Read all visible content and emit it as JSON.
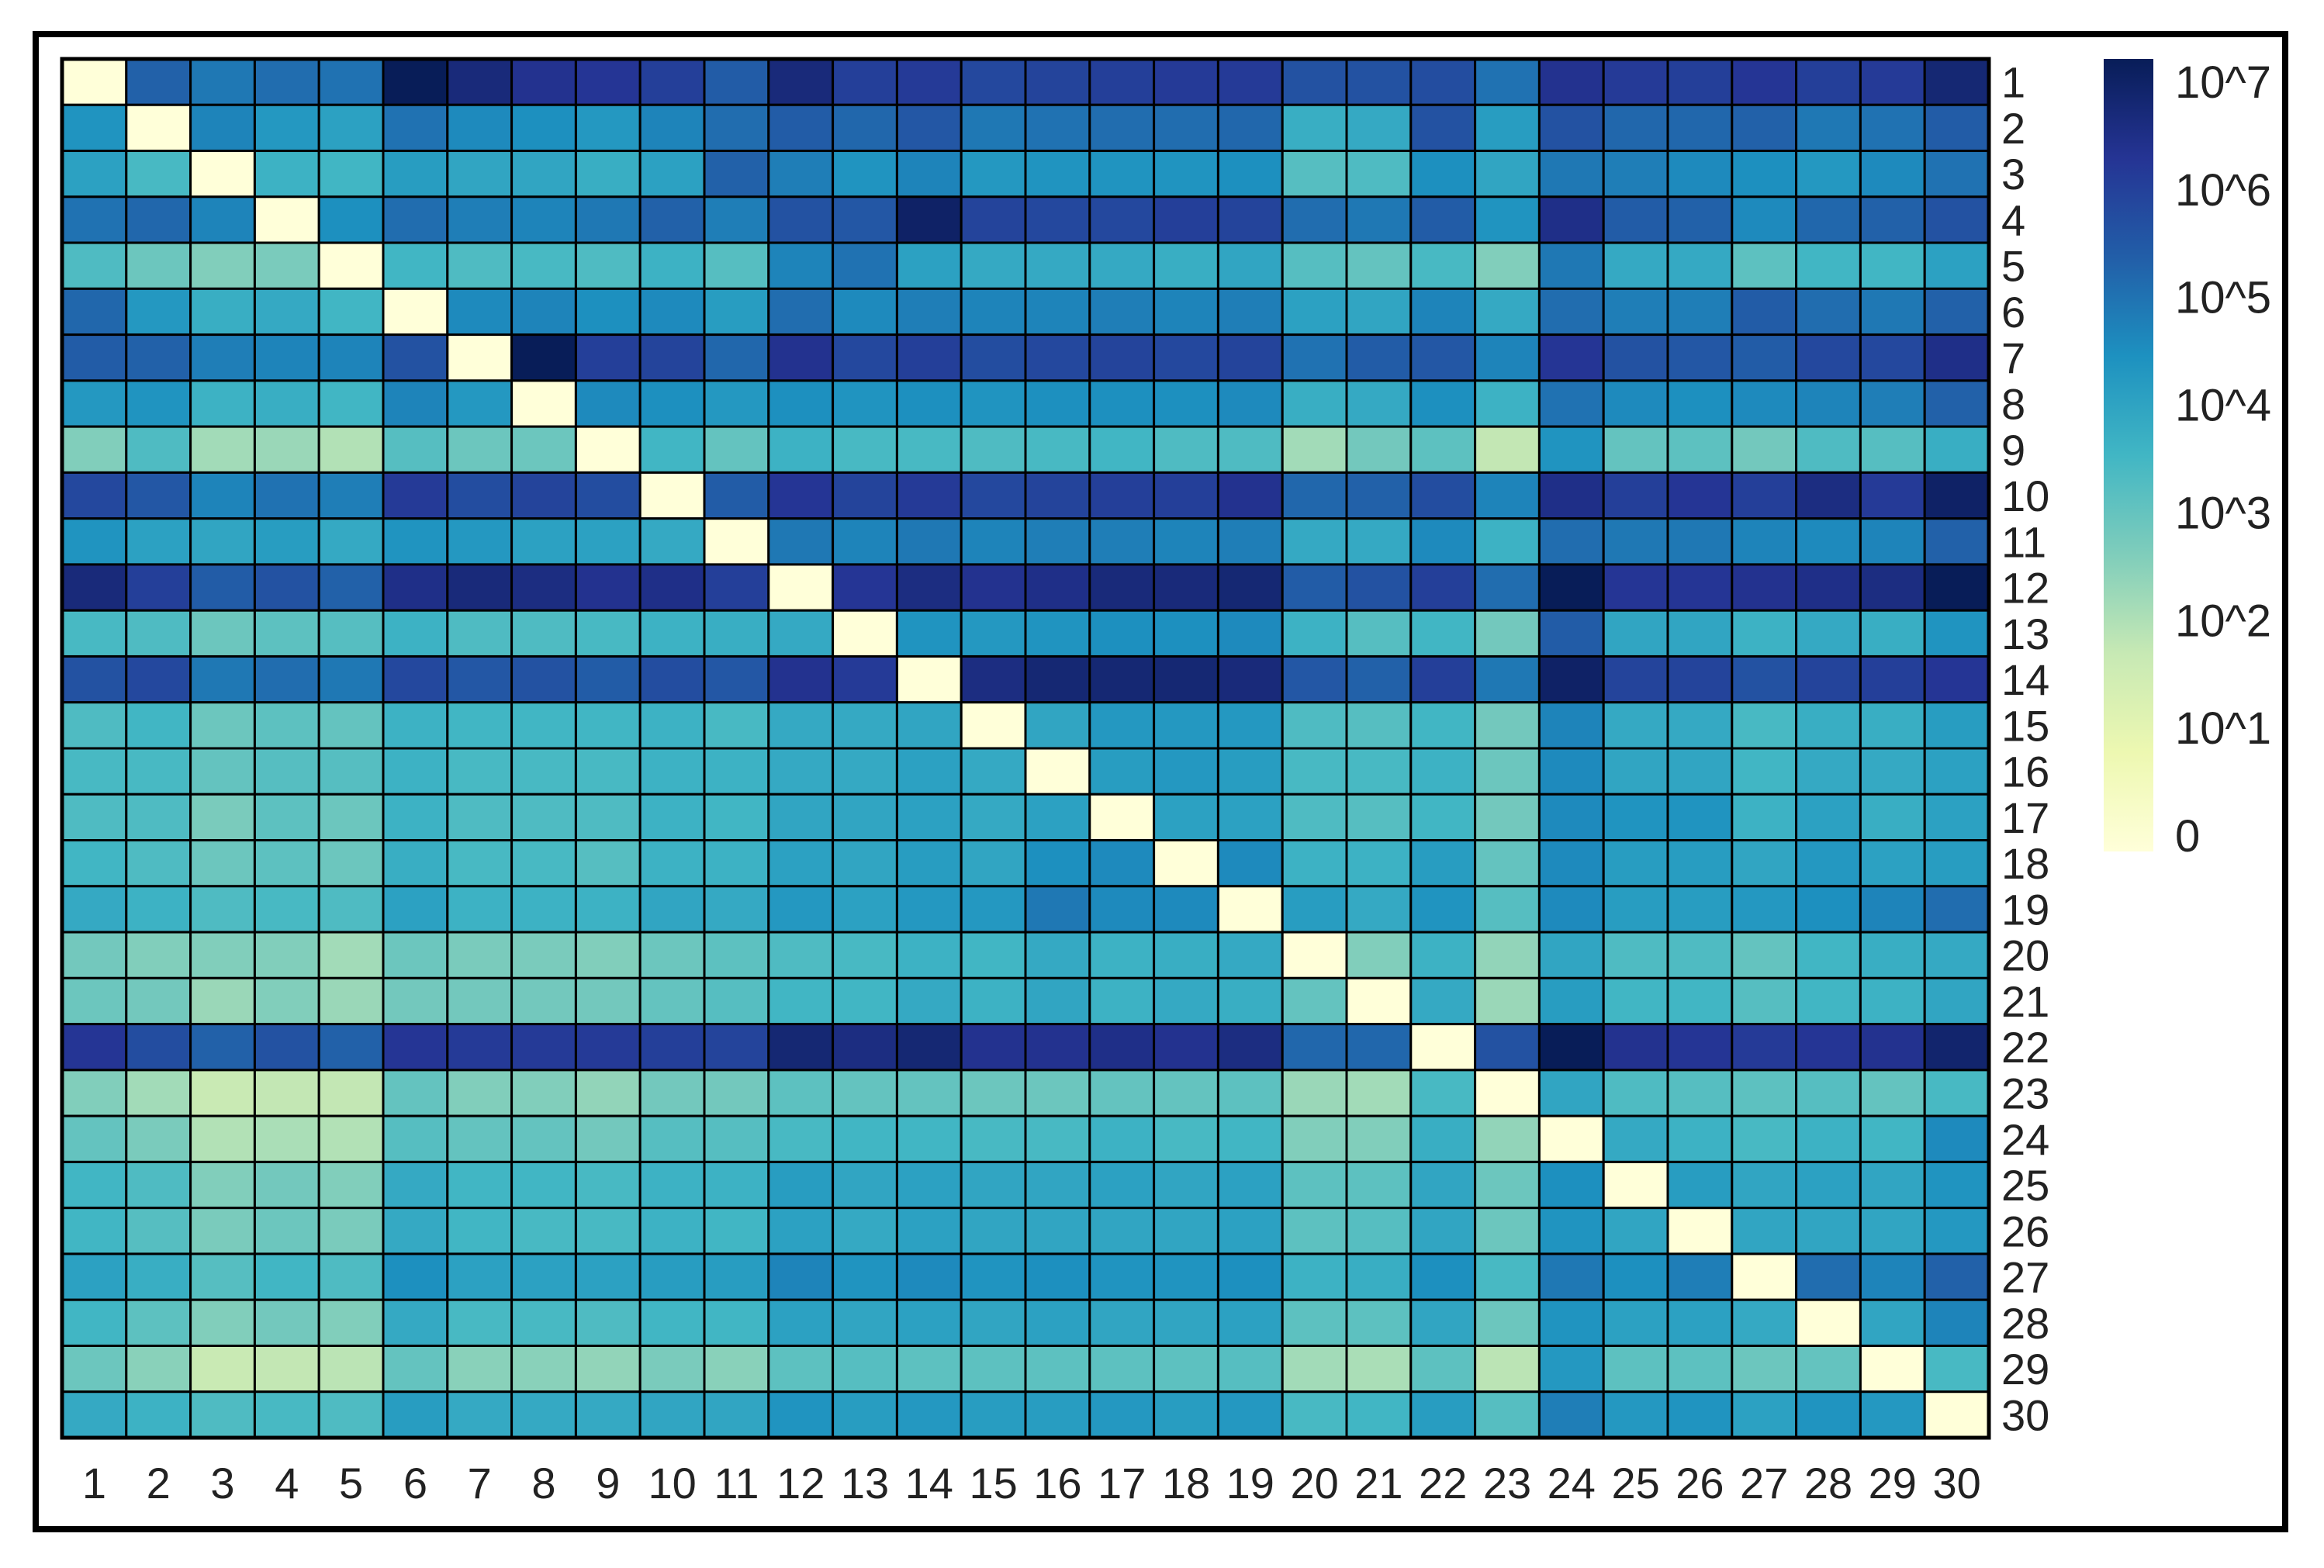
{
  "chart_data": {
    "type": "heatmap",
    "title": "",
    "xlabel": "",
    "ylabel": "",
    "x_categories": [
      "1",
      "2",
      "3",
      "4",
      "5",
      "6",
      "7",
      "8",
      "9",
      "10",
      "11",
      "12",
      "13",
      "14",
      "15",
      "16",
      "17",
      "18",
      "19",
      "20",
      "21",
      "22",
      "23",
      "24",
      "25",
      "26",
      "27",
      "28",
      "29",
      "30"
    ],
    "y_categories": [
      "1",
      "2",
      "3",
      "4",
      "5",
      "6",
      "7",
      "8",
      "9",
      "10",
      "11",
      "12",
      "13",
      "14",
      "15",
      "16",
      "17",
      "18",
      "19",
      "20",
      "21",
      "22",
      "23",
      "24",
      "25",
      "26",
      "27",
      "28",
      "29",
      "30"
    ],
    "value_scale": "log10 exponent (cell value = 10^v; 0 shown as lightest)",
    "values": [
      [
        0,
        5.2,
        4.8,
        5.0,
        4.9,
        7.0,
        6.5,
        6.2,
        6.1,
        5.9,
        5.3,
        6.5,
        5.9,
        6.0,
        5.7,
        5.8,
        5.9,
        6.0,
        6.0,
        5.5,
        5.5,
        5.6,
        4.9,
        6.2,
        6.0,
        5.9,
        6.1,
        5.9,
        6.0,
        6.6
      ],
      [
        4.3,
        0,
        4.6,
        4.2,
        4.0,
        4.9,
        4.5,
        4.4,
        4.2,
        4.6,
        5.0,
        5.3,
        5.1,
        5.4,
        4.8,
        4.9,
        5.0,
        5.0,
        5.1,
        3.7,
        3.8,
        5.5,
        4.1,
        5.5,
        5.1,
        5.1,
        5.2,
        4.8,
        4.9,
        5.3
      ],
      [
        4.0,
        3.4,
        0,
        3.6,
        3.5,
        4.1,
        3.9,
        3.9,
        3.7,
        4.0,
        5.2,
        4.7,
        4.3,
        4.6,
        4.2,
        4.3,
        4.3,
        4.3,
        4.4,
        3.2,
        3.3,
        4.4,
        3.9,
        4.8,
        4.7,
        4.5,
        4.4,
        4.2,
        4.5,
        4.9
      ],
      [
        4.9,
        5.1,
        4.6,
        0,
        4.4,
        5.0,
        4.7,
        4.6,
        4.8,
        5.2,
        4.7,
        5.5,
        5.4,
        6.8,
        5.8,
        5.7,
        5.7,
        5.9,
        5.8,
        5.0,
        4.8,
        5.3,
        4.3,
        6.3,
        5.3,
        5.2,
        4.5,
        5.1,
        5.2,
        5.5
      ],
      [
        3.3,
        2.9,
        2.6,
        2.7,
        0,
        3.5,
        3.3,
        3.4,
        3.3,
        3.6,
        3.2,
        4.6,
        4.9,
        4.0,
        3.8,
        3.8,
        3.8,
        3.7,
        3.9,
        3.2,
        3.0,
        3.4,
        2.6,
        4.8,
        3.8,
        3.8,
        3.1,
        3.5,
        3.5,
        4.0
      ],
      [
        5.1,
        4.2,
        3.7,
        3.8,
        3.5,
        0,
        4.5,
        4.6,
        4.4,
        4.5,
        4.1,
        5.0,
        4.5,
        4.7,
        4.6,
        4.6,
        4.7,
        4.6,
        4.7,
        4.0,
        3.9,
        4.6,
        3.8,
        5.0,
        4.7,
        4.7,
        5.3,
        5.0,
        4.8,
        5.2
      ],
      [
        5.3,
        5.2,
        4.7,
        4.6,
        4.6,
        5.5,
        0,
        7.0,
        5.9,
        5.8,
        5.1,
        6.2,
        5.7,
        5.9,
        5.6,
        5.7,
        5.8,
        5.7,
        5.8,
        4.9,
        5.3,
        5.4,
        4.6,
        6.1,
        5.5,
        5.4,
        5.3,
        5.7,
        5.7,
        6.3
      ],
      [
        4.2,
        4.3,
        3.6,
        3.7,
        3.5,
        4.6,
        4.2,
        0,
        4.5,
        4.4,
        4.2,
        4.4,
        4.3,
        4.4,
        4.3,
        4.4,
        4.4,
        4.4,
        4.5,
        3.7,
        3.8,
        4.4,
        3.6,
        4.9,
        4.5,
        4.4,
        4.5,
        4.6,
        4.7,
        5.2
      ],
      [
        2.6,
        3.3,
        2.2,
        2.3,
        2.0,
        3.2,
        2.9,
        2.9,
        0,
        3.5,
        3.0,
        3.6,
        3.4,
        3.4,
        3.3,
        3.4,
        3.5,
        3.3,
        3.3,
        2.2,
        2.8,
        3.1,
        1.8,
        4.3,
        3.0,
        3.1,
        2.8,
        3.3,
        3.2,
        3.7
      ],
      [
        5.7,
        5.4,
        4.6,
        4.9,
        4.7,
        6.0,
        5.6,
        5.8,
        5.6,
        0,
        5.3,
        6.1,
        5.8,
        6.0,
        5.7,
        5.8,
        5.9,
        5.9,
        6.2,
        5.1,
        5.2,
        5.6,
        4.6,
        6.3,
        5.9,
        6.1,
        5.9,
        6.4,
        6.0,
        6.8
      ],
      [
        4.3,
        4.0,
        3.9,
        4.1,
        3.8,
        4.3,
        4.2,
        4.0,
        4.0,
        3.8,
        0,
        4.8,
        4.6,
        4.8,
        4.6,
        4.7,
        4.7,
        4.6,
        4.7,
        3.8,
        3.8,
        4.5,
        3.6,
        5.0,
        4.8,
        4.8,
        4.6,
        4.5,
        4.6,
        5.2
      ],
      [
        6.5,
        5.9,
        5.3,
        5.5,
        5.2,
        6.3,
        6.5,
        6.4,
        6.2,
        6.3,
        5.9,
        0,
        6.1,
        6.4,
        6.2,
        6.3,
        6.5,
        6.5,
        6.6,
        5.3,
        5.5,
        5.9,
        5.0,
        7.0,
        6.1,
        6.1,
        6.2,
        6.3,
        6.4,
        7.0
      ],
      [
        3.4,
        3.3,
        2.9,
        3.1,
        3.2,
        3.6,
        3.3,
        3.3,
        3.4,
        3.6,
        3.7,
        3.8,
        0,
        4.3,
        4.2,
        4.3,
        4.4,
        4.4,
        4.5,
        3.6,
        3.2,
        3.5,
        2.8,
        5.3,
        3.9,
        3.9,
        3.6,
        3.8,
        3.7,
        4.3
      ],
      [
        5.5,
        5.7,
        4.8,
        5.0,
        4.8,
        5.7,
        5.4,
        5.5,
        5.3,
        5.6,
        5.4,
        6.2,
        6.0,
        0,
        6.4,
        6.6,
        6.6,
        6.6,
        6.5,
        5.4,
        5.2,
        5.9,
        4.8,
        6.8,
        5.8,
        5.8,
        5.5,
        5.8,
        5.9,
        6.1
      ],
      [
        3.3,
        3.5,
        2.9,
        3.1,
        3.0,
        3.6,
        3.5,
        3.5,
        3.5,
        3.6,
        3.4,
        3.8,
        3.8,
        3.9,
        0,
        3.9,
        4.2,
        4.2,
        4.2,
        3.3,
        3.2,
        3.5,
        2.8,
        4.6,
        3.8,
        3.8,
        3.4,
        3.7,
        3.7,
        4.1
      ],
      [
        3.4,
        3.4,
        3.0,
        3.2,
        3.2,
        3.6,
        3.4,
        3.4,
        3.4,
        3.6,
        3.6,
        3.8,
        3.8,
        4.0,
        3.8,
        0,
        4.1,
        4.2,
        4.1,
        3.4,
        3.4,
        3.6,
        2.9,
        4.5,
        3.9,
        3.9,
        3.5,
        3.8,
        3.8,
        4.0
      ],
      [
        3.3,
        3.3,
        2.7,
        3.1,
        2.9,
        3.6,
        3.3,
        3.3,
        3.3,
        3.6,
        3.5,
        3.9,
        3.9,
        4.0,
        3.8,
        4.0,
        0,
        4.0,
        4.0,
        3.3,
        3.2,
        3.5,
        2.8,
        4.5,
        4.3,
        4.3,
        3.6,
        4.0,
        3.7,
        4.0
      ],
      [
        3.5,
        3.3,
        2.9,
        3.1,
        2.9,
        3.7,
        3.4,
        3.4,
        3.2,
        3.6,
        3.6,
        4.0,
        3.9,
        4.1,
        3.9,
        4.4,
        4.5,
        0,
        4.5,
        3.6,
        3.6,
        4.1,
        3.0,
        4.5,
        4.1,
        4.1,
        3.9,
        4.2,
        4.0,
        4.1
      ],
      [
        3.8,
        3.6,
        3.3,
        3.4,
        3.3,
        4.0,
        3.6,
        3.6,
        3.6,
        3.9,
        3.8,
        4.2,
        4.0,
        4.2,
        4.2,
        4.8,
        4.5,
        4.5,
        0,
        4.1,
        3.8,
        4.3,
        3.2,
        4.5,
        4.1,
        4.1,
        4.2,
        4.4,
        4.6,
        5.0
      ],
      [
        2.8,
        2.6,
        2.6,
        2.6,
        2.2,
        2.9,
        2.7,
        2.7,
        2.6,
        2.9,
        3.1,
        3.3,
        3.4,
        3.6,
        3.5,
        3.8,
        3.6,
        3.7,
        3.8,
        0,
        2.6,
        3.6,
        2.4,
        3.9,
        3.3,
        3.3,
        3.0,
        3.5,
        3.7,
        3.8
      ],
      [
        2.9,
        2.8,
        2.3,
        2.6,
        2.3,
        2.8,
        2.8,
        2.8,
        2.8,
        3.0,
        3.2,
        3.5,
        3.5,
        3.8,
        3.6,
        3.9,
        3.6,
        3.8,
        3.7,
        3.0,
        0,
        3.8,
        2.3,
        4.1,
        3.5,
        3.5,
        3.2,
        3.5,
        3.6,
        3.9
      ],
      [
        6.1,
        5.6,
        5.2,
        5.5,
        5.2,
        6.1,
        6.0,
        6.0,
        6.0,
        5.9,
        5.8,
        6.6,
        6.4,
        6.6,
        6.2,
        6.2,
        6.3,
        6.2,
        6.4,
        5.1,
        5.1,
        0,
        5.5,
        7.0,
        6.2,
        6.1,
        6.0,
        6.1,
        6.2,
        6.7
      ],
      [
        2.6,
        2.2,
        1.7,
        1.8,
        1.8,
        3.0,
        2.6,
        2.6,
        2.4,
        2.8,
        2.8,
        3.1,
        3.0,
        3.0,
        2.9,
        2.9,
        3.0,
        3.0,
        3.1,
        2.3,
        2.2,
        3.4,
        0,
        3.9,
        3.3,
        3.2,
        3.1,
        3.2,
        3.0,
        3.4
      ],
      [
        3.0,
        2.7,
        2.0,
        2.1,
        2.0,
        3.2,
        3.0,
        3.0,
        2.8,
        3.2,
        3.2,
        3.4,
        3.5,
        3.5,
        3.4,
        3.4,
        3.6,
        3.4,
        3.5,
        2.6,
        2.6,
        3.7,
        2.4,
        0,
        3.8,
        3.6,
        3.4,
        3.6,
        3.5,
        4.5
      ],
      [
        3.5,
        3.3,
        2.6,
        2.8,
        2.6,
        3.8,
        3.5,
        3.5,
        3.4,
        3.6,
        3.6,
        4.1,
        3.9,
        4.0,
        3.9,
        3.9,
        4.0,
        3.9,
        4.0,
        3.1,
        3.1,
        3.9,
        2.9,
        4.4,
        0,
        4.1,
        3.9,
        4.0,
        3.9,
        4.3
      ],
      [
        3.5,
        3.2,
        2.7,
        2.9,
        2.7,
        3.8,
        3.5,
        3.4,
        3.4,
        3.6,
        3.5,
        4.0,
        3.8,
        4.0,
        3.9,
        3.9,
        3.9,
        3.9,
        4.0,
        3.1,
        3.2,
        3.9,
        2.9,
        4.3,
        3.9,
        0,
        3.9,
        3.9,
        3.9,
        4.2
      ],
      [
        4.0,
        3.7,
        3.2,
        3.5,
        3.3,
        4.4,
        4.0,
        4.0,
        4.0,
        4.1,
        4.1,
        4.6,
        4.3,
        4.5,
        4.3,
        4.4,
        4.3,
        4.3,
        4.4,
        3.6,
        3.7,
        4.4,
        3.4,
        4.8,
        4.4,
        4.7,
        0,
        5.0,
        4.6,
        5.2
      ],
      [
        3.5,
        3.1,
        2.6,
        2.8,
        2.6,
        3.8,
        3.4,
        3.4,
        3.3,
        3.5,
        3.5,
        4.0,
        3.9,
        4.0,
        3.9,
        4.0,
        3.9,
        3.9,
        4.0,
        3.1,
        3.1,
        3.9,
        2.9,
        4.3,
        4.0,
        4.0,
        3.8,
        0,
        3.9,
        4.6
      ],
      [
        2.9,
        2.5,
        1.7,
        1.8,
        1.9,
        3.0,
        2.5,
        2.5,
        2.4,
        2.7,
        2.5,
        3.1,
        3.2,
        3.1,
        3.1,
        3.1,
        3.1,
        3.1,
        3.2,
        2.2,
        2.1,
        3.1,
        1.9,
        4.2,
        3.1,
        3.1,
        2.9,
        3.0,
        0,
        3.4
      ],
      [
        3.8,
        3.6,
        3.3,
        3.4,
        3.3,
        4.1,
        3.8,
        3.8,
        3.8,
        3.9,
        3.9,
        4.3,
        4.1,
        4.2,
        4.1,
        4.1,
        4.2,
        4.1,
        4.2,
        3.4,
        3.5,
        4.1,
        3.2,
        4.7,
        4.2,
        4.3,
        4.0,
        4.3,
        4.2,
        0
      ]
    ],
    "colorbar": {
      "labels": [
        "0",
        "10^1",
        "10^2",
        "10^3",
        "10^4",
        "10^5",
        "10^6",
        "10^7"
      ],
      "min": 0,
      "max": 7,
      "colors": [
        "#ffffd9",
        "#edf8b1",
        "#c7e9b4",
        "#7fcdbb",
        "#41b6c4",
        "#1d91c0",
        "#225ea8",
        "#253494",
        "#081d58"
      ]
    },
    "grid": true
  }
}
